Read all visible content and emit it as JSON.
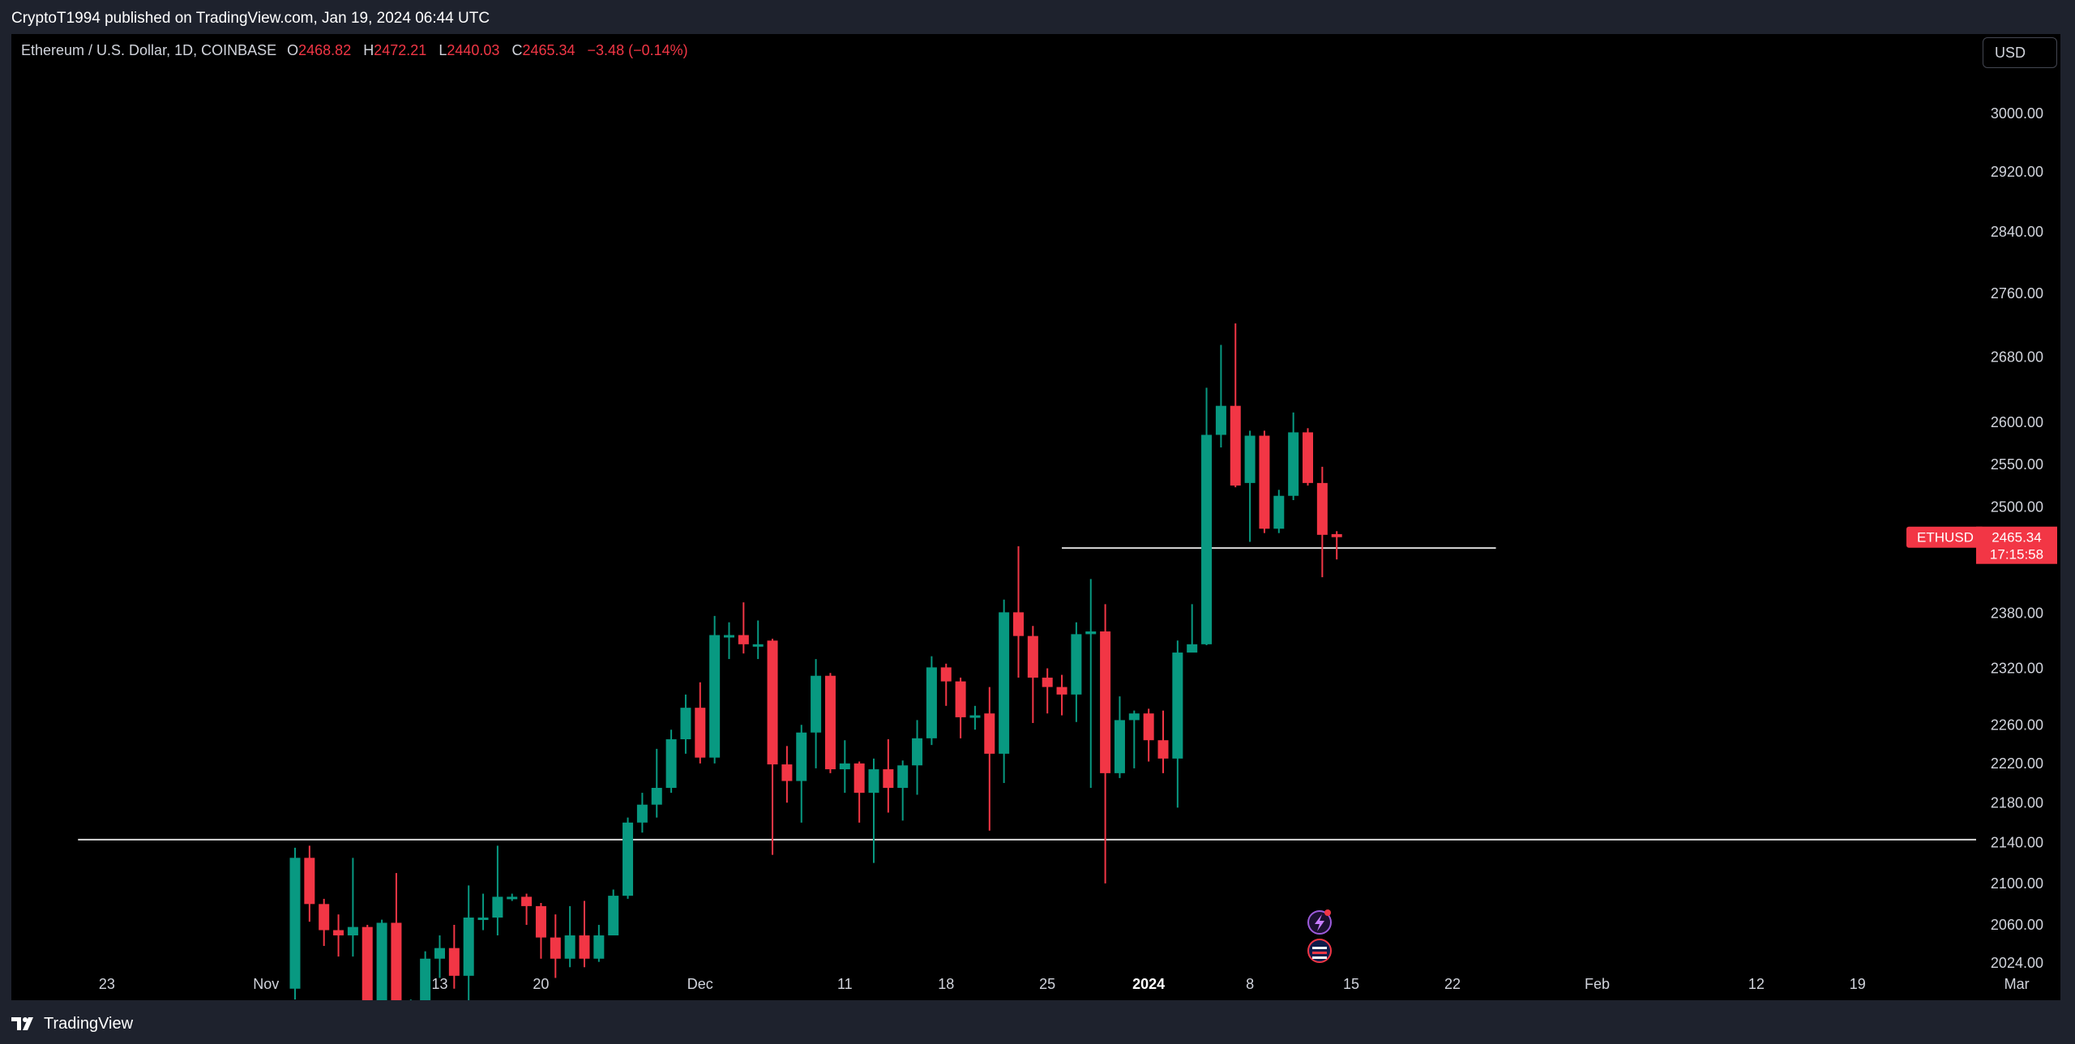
{
  "header": {
    "published": "CryptoT1994 published on TradingView.com, Jan 19, 2024 06:44 UTC"
  },
  "legend": {
    "symbol": "Ethereum / U.S. Dollar, 1D, COINBASE",
    "o_label": "O",
    "o_value": "2468.82",
    "h_label": "H",
    "h_value": "2472.21",
    "l_label": "L",
    "l_value": "2440.03",
    "c_label": "C",
    "c_value": "2465.34",
    "change": "−3.48 (−0.14%)"
  },
  "toolbar": {
    "currency": "USD"
  },
  "price_label": {
    "ticker": "ETHUSD",
    "price": "2465.34",
    "countdown": "17:15:58"
  },
  "footer": {
    "brand": "TradingView"
  },
  "colors": {
    "up": "#089981",
    "down": "#f23645",
    "background": "#000000",
    "line": "#d9d9d9"
  },
  "events": {
    "icons": [
      "lightning-icon",
      "us-flag-icon"
    ]
  },
  "chart_data": {
    "type": "candlestick",
    "symbol": "ETHUSD",
    "interval": "1D",
    "exchange": "COINBASE",
    "y_scale": "log",
    "y_ticks": [
      2024,
      2060,
      2100,
      2140,
      2180,
      2220,
      2260,
      2320,
      2380,
      2500,
      2550,
      2600,
      2680,
      2760,
      2840,
      2920,
      3000
    ],
    "y_tick_labels": [
      "2024.00",
      "2060.00",
      "2100.00",
      "2140.00",
      "2180.00",
      "2220.00",
      "2260.00",
      "2320.00",
      "2380.00",
      "2500.00",
      "2550.00",
      "2600.00",
      "2680.00",
      "2760.00",
      "2840.00",
      "2920.00",
      "3000.00"
    ],
    "x_ticks": [
      {
        "label": "23",
        "day": -13,
        "bold": false
      },
      {
        "label": "Nov",
        "day": -2,
        "bold": false
      },
      {
        "label": "13",
        "day": 10,
        "bold": false
      },
      {
        "label": "20",
        "day": 17,
        "bold": false
      },
      {
        "label": "Dec",
        "day": 28,
        "bold": false
      },
      {
        "label": "11",
        "day": 38,
        "bold": false
      },
      {
        "label": "18",
        "day": 45,
        "bold": false
      },
      {
        "label": "25",
        "day": 52,
        "bold": false
      },
      {
        "label": "2024",
        "day": 59,
        "bold": true
      },
      {
        "label": "8",
        "day": 66,
        "bold": false
      },
      {
        "label": "15",
        "day": 73,
        "bold": false
      },
      {
        "label": "22",
        "day": 80,
        "bold": false
      },
      {
        "label": "Feb",
        "day": 90,
        "bold": false
      },
      {
        "label": "12",
        "day": 101,
        "bold": false
      },
      {
        "label": "19",
        "day": 108,
        "bold": false
      },
      {
        "label": "Mar",
        "day": 119,
        "bold": false
      }
    ],
    "horizontal_lines": [
      {
        "price": 2143,
        "from_day": -15,
        "to_day": 123
      },
      {
        "price": 2453,
        "from_day": 53,
        "to_day": 83
      }
    ],
    "candles": [
      {
        "date": "2023-11-09",
        "o": 2000,
        "h": 2135,
        "l": 1990,
        "c": 2125
      },
      {
        "date": "2023-11-10",
        "o": 2125,
        "h": 2137,
        "l": 2063,
        "c": 2080
      },
      {
        "date": "2023-11-11",
        "o": 2080,
        "h": 2085,
        "l": 2040,
        "c": 2055
      },
      {
        "date": "2023-11-12",
        "o": 2055,
        "h": 2070,
        "l": 2030,
        "c": 2050
      },
      {
        "date": "2023-11-13",
        "o": 2050,
        "h": 2125,
        "l": 2030,
        "c": 2058
      },
      {
        "date": "2023-11-14",
        "o": 2058,
        "h": 2060,
        "l": 1960,
        "c": 1985
      },
      {
        "date": "2023-11-15",
        "o": 1985,
        "h": 2065,
        "l": 1975,
        "c": 2062
      },
      {
        "date": "2023-11-16",
        "o": 2062,
        "h": 2110,
        "l": 1940,
        "c": 1960
      },
      {
        "date": "2023-11-17",
        "o": 1960,
        "h": 1990,
        "l": 1930,
        "c": 1960
      },
      {
        "date": "2023-11-18",
        "o": 1960,
        "h": 2035,
        "l": 1950,
        "c": 2028
      },
      {
        "date": "2023-11-19",
        "o": 2028,
        "h": 2050,
        "l": 2010,
        "c": 2038
      },
      {
        "date": "2023-11-20",
        "o": 2038,
        "h": 2060,
        "l": 2000,
        "c": 2012
      },
      {
        "date": "2023-11-21",
        "o": 2012,
        "h": 2098,
        "l": 1935,
        "c": 2067
      },
      {
        "date": "2023-11-22",
        "o": 2067,
        "h": 2090,
        "l": 2055,
        "c": 2067
      },
      {
        "date": "2023-11-23",
        "o": 2067,
        "h": 2137,
        "l": 2050,
        "c": 2087
      },
      {
        "date": "2023-11-24",
        "o": 2087,
        "h": 2090,
        "l": 2083,
        "c": 2087
      },
      {
        "date": "2023-11-25",
        "o": 2087,
        "h": 2090,
        "l": 2060,
        "c": 2078
      },
      {
        "date": "2023-11-26",
        "o": 2078,
        "h": 2081,
        "l": 2028,
        "c": 2048
      },
      {
        "date": "2023-11-27",
        "o": 2048,
        "h": 2070,
        "l": 2010,
        "c": 2028
      },
      {
        "date": "2023-11-28",
        "o": 2028,
        "h": 2078,
        "l": 2020,
        "c": 2050
      },
      {
        "date": "2023-11-29",
        "o": 2050,
        "h": 2083,
        "l": 2020,
        "c": 2028
      },
      {
        "date": "2023-11-30",
        "o": 2028,
        "h": 2060,
        "l": 2025,
        "c": 2050
      },
      {
        "date": "2023-12-01",
        "o": 2050,
        "h": 2094,
        "l": 2050,
        "c": 2088
      },
      {
        "date": "2023-12-02",
        "o": 2088,
        "h": 2165,
        "l": 2085,
        "c": 2160
      },
      {
        "date": "2023-12-03",
        "o": 2160,
        "h": 2190,
        "l": 2150,
        "c": 2178
      },
      {
        "date": "2023-12-04",
        "o": 2178,
        "h": 2235,
        "l": 2165,
        "c": 2195
      },
      {
        "date": "2023-12-05",
        "o": 2195,
        "h": 2255,
        "l": 2190,
        "c": 2245
      },
      {
        "date": "2023-12-06",
        "o": 2245,
        "h": 2292,
        "l": 2230,
        "c": 2278
      },
      {
        "date": "2023-12-07",
        "o": 2278,
        "h": 2305,
        "l": 2220,
        "c": 2226
      },
      {
        "date": "2023-12-08",
        "o": 2226,
        "h": 2377,
        "l": 2220,
        "c": 2356
      },
      {
        "date": "2023-12-09",
        "o": 2356,
        "h": 2370,
        "l": 2330,
        "c": 2356
      },
      {
        "date": "2023-12-10",
        "o": 2356,
        "h": 2392,
        "l": 2336,
        "c": 2346
      },
      {
        "date": "2023-12-11",
        "o": 2346,
        "h": 2372,
        "l": 2330,
        "c": 2346
      },
      {
        "date": "2023-12-12",
        "o": 2350,
        "h": 2352,
        "l": 2128,
        "c": 2219
      },
      {
        "date": "2023-12-13",
        "o": 2219,
        "h": 2238,
        "l": 2180,
        "c": 2202
      },
      {
        "date": "2023-12-14",
        "o": 2202,
        "h": 2260,
        "l": 2160,
        "c": 2252
      },
      {
        "date": "2023-12-15",
        "o": 2252,
        "h": 2330,
        "l": 2215,
        "c": 2312
      },
      {
        "date": "2023-12-16",
        "o": 2312,
        "h": 2315,
        "l": 2210,
        "c": 2214
      },
      {
        "date": "2023-12-17",
        "o": 2214,
        "h": 2244,
        "l": 2190,
        "c": 2220
      },
      {
        "date": "2023-12-18",
        "o": 2220,
        "h": 2222,
        "l": 2160,
        "c": 2190
      },
      {
        "date": "2023-12-19",
        "o": 2190,
        "h": 2225,
        "l": 2120,
        "c": 2214
      },
      {
        "date": "2023-12-20",
        "o": 2214,
        "h": 2245,
        "l": 2170,
        "c": 2195
      },
      {
        "date": "2023-12-21",
        "o": 2195,
        "h": 2223,
        "l": 2162,
        "c": 2218
      },
      {
        "date": "2023-12-22",
        "o": 2218,
        "h": 2265,
        "l": 2188,
        "c": 2246
      },
      {
        "date": "2023-12-23",
        "o": 2246,
        "h": 2333,
        "l": 2239,
        "c": 2321
      },
      {
        "date": "2023-12-24",
        "o": 2321,
        "h": 2325,
        "l": 2280,
        "c": 2306
      },
      {
        "date": "2023-12-25",
        "o": 2306,
        "h": 2310,
        "l": 2246,
        "c": 2268
      },
      {
        "date": "2023-12-26",
        "o": 2268,
        "h": 2280,
        "l": 2255,
        "c": 2270
      },
      {
        "date": "2023-12-27",
        "o": 2272,
        "h": 2300,
        "l": 2152,
        "c": 2230
      },
      {
        "date": "2023-12-28",
        "o": 2230,
        "h": 2395,
        "l": 2200,
        "c": 2381
      },
      {
        "date": "2023-12-29",
        "o": 2381,
        "h": 2455,
        "l": 2310,
        "c": 2355
      },
      {
        "date": "2023-12-30",
        "o": 2355,
        "h": 2366,
        "l": 2262,
        "c": 2310
      },
      {
        "date": "2023-12-31",
        "o": 2310,
        "h": 2320,
        "l": 2272,
        "c": 2300
      },
      {
        "date": "2024-01-01",
        "o": 2300,
        "h": 2313,
        "l": 2270,
        "c": 2292
      },
      {
        "date": "2024-01-02",
        "o": 2292,
        "h": 2370,
        "l": 2263,
        "c": 2357
      },
      {
        "date": "2024-01-03",
        "o": 2357,
        "h": 2418,
        "l": 2195,
        "c": 2360
      },
      {
        "date": "2024-01-04",
        "o": 2360,
        "h": 2390,
        "l": 2100,
        "c": 2210
      },
      {
        "date": "2024-01-05",
        "o": 2210,
        "h": 2290,
        "l": 2205,
        "c": 2265
      },
      {
        "date": "2024-01-06",
        "o": 2265,
        "h": 2275,
        "l": 2215,
        "c": 2272
      },
      {
        "date": "2024-01-07",
        "o": 2272,
        "h": 2277,
        "l": 2222,
        "c": 2244
      },
      {
        "date": "2024-01-08",
        "o": 2244,
        "h": 2275,
        "l": 2210,
        "c": 2225
      },
      {
        "date": "2024-01-09",
        "o": 2225,
        "h": 2350,
        "l": 2175,
        "c": 2337
      },
      {
        "date": "2024-01-10",
        "o": 2337,
        "h": 2390,
        "l": 2340,
        "c": 2346
      },
      {
        "date": "2024-01-11",
        "o": 2346,
        "h": 2642,
        "l": 2345,
        "c": 2585
      },
      {
        "date": "2024-01-12",
        "o": 2585,
        "h": 2695,
        "l": 2570,
        "c": 2620
      },
      {
        "date": "2024-01-13",
        "o": 2620,
        "h": 2722,
        "l": 2523,
        "c": 2525
      },
      {
        "date": "2024-01-14",
        "o": 2528,
        "h": 2590,
        "l": 2460,
        "c": 2584
      },
      {
        "date": "2024-01-15",
        "o": 2584,
        "h": 2590,
        "l": 2470,
        "c": 2475
      },
      {
        "date": "2024-01-16",
        "o": 2475,
        "h": 2520,
        "l": 2470,
        "c": 2513
      },
      {
        "date": "2024-01-17",
        "o": 2513,
        "h": 2612,
        "l": 2508,
        "c": 2588
      },
      {
        "date": "2024-01-18",
        "o": 2588,
        "h": 2593,
        "l": 2525,
        "c": 2528
      },
      {
        "date": "2024-01-19",
        "o": 2528,
        "h": 2547,
        "l": 2420,
        "c": 2468
      },
      {
        "date": "2024-01-20",
        "o": 2468.82,
        "h": 2472.21,
        "l": 2440.03,
        "c": 2465.34
      }
    ]
  }
}
